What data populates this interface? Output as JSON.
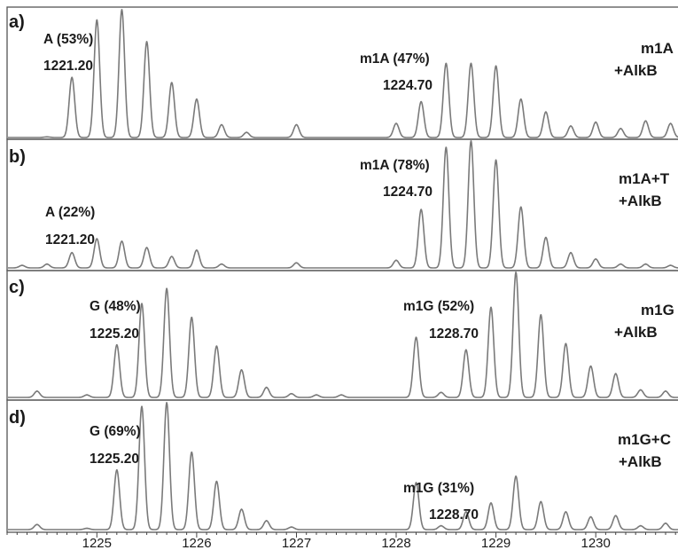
{
  "chart_data": {
    "type": "line",
    "x_axis": {
      "min": 1224.1,
      "max": 1230.94,
      "ticks": [
        1225,
        1226,
        1227,
        1228,
        1229,
        1230
      ],
      "tick_labels": [
        "1225",
        "1226",
        "1227",
        "1228",
        "1229",
        "1230"
      ]
    },
    "panels": [
      {
        "label": "a)",
        "condition": [
          "m1A",
          "+AlkB"
        ],
        "annotations": [
          {
            "name": "A (53%)",
            "value": "1221.20"
          },
          {
            "name": "m1A (47%)",
            "value": "1224.70"
          }
        ],
        "peaks": [
          {
            "x": 1224.5,
            "h": 0.005
          },
          {
            "x": 1224.75,
            "h": 0.47
          },
          {
            "x": 1225.0,
            "h": 0.92
          },
          {
            "x": 1225.25,
            "h": 1.0
          },
          {
            "x": 1225.5,
            "h": 0.75
          },
          {
            "x": 1225.75,
            "h": 0.43
          },
          {
            "x": 1226.0,
            "h": 0.3
          },
          {
            "x": 1226.25,
            "h": 0.1
          },
          {
            "x": 1226.5,
            "h": 0.04
          },
          {
            "x": 1227.0,
            "h": 0.1
          },
          {
            "x": 1228.0,
            "h": 0.11
          },
          {
            "x": 1228.25,
            "h": 0.28
          },
          {
            "x": 1228.5,
            "h": 0.58
          },
          {
            "x": 1228.75,
            "h": 0.58
          },
          {
            "x": 1229.0,
            "h": 0.56
          },
          {
            "x": 1229.25,
            "h": 0.3
          },
          {
            "x": 1229.5,
            "h": 0.2
          },
          {
            "x": 1229.75,
            "h": 0.09
          },
          {
            "x": 1230.0,
            "h": 0.12
          },
          {
            "x": 1230.25,
            "h": 0.07
          },
          {
            "x": 1230.5,
            "h": 0.13
          },
          {
            "x": 1230.75,
            "h": 0.11
          }
        ]
      },
      {
        "label": "b)",
        "condition": [
          "m1A+T",
          "+AlkB"
        ],
        "annotations": [
          {
            "name": "A (22%)",
            "value": "1221.20"
          },
          {
            "name": "m1A (78%)",
            "value": "1224.70"
          }
        ],
        "peaks": [
          {
            "x": 1224.25,
            "h": 0.02
          },
          {
            "x": 1224.5,
            "h": 0.03
          },
          {
            "x": 1224.75,
            "h": 0.12
          },
          {
            "x": 1225.0,
            "h": 0.23
          },
          {
            "x": 1225.25,
            "h": 0.21
          },
          {
            "x": 1225.5,
            "h": 0.16
          },
          {
            "x": 1225.75,
            "h": 0.09
          },
          {
            "x": 1226.0,
            "h": 0.14
          },
          {
            "x": 1226.25,
            "h": 0.03
          },
          {
            "x": 1227.0,
            "h": 0.04
          },
          {
            "x": 1228.0,
            "h": 0.06
          },
          {
            "x": 1228.25,
            "h": 0.46
          },
          {
            "x": 1228.5,
            "h": 0.95
          },
          {
            "x": 1228.75,
            "h": 1.0
          },
          {
            "x": 1229.0,
            "h": 0.85
          },
          {
            "x": 1229.25,
            "h": 0.48
          },
          {
            "x": 1229.5,
            "h": 0.24
          },
          {
            "x": 1229.75,
            "h": 0.12
          },
          {
            "x": 1230.0,
            "h": 0.07
          },
          {
            "x": 1230.25,
            "h": 0.03
          },
          {
            "x": 1230.5,
            "h": 0.03
          },
          {
            "x": 1230.75,
            "h": 0.02
          }
        ]
      },
      {
        "label": "c)",
        "condition": [
          "m1G",
          "+AlkB"
        ],
        "annotations": [
          {
            "name": "G (48%)",
            "value": "1225.20"
          },
          {
            "name": "m1G (52%)",
            "value": "1228.70"
          }
        ],
        "peaks": [
          {
            "x": 1224.4,
            "h": 0.05
          },
          {
            "x": 1224.9,
            "h": 0.02
          },
          {
            "x": 1225.2,
            "h": 0.42
          },
          {
            "x": 1225.45,
            "h": 0.75
          },
          {
            "x": 1225.7,
            "h": 0.87
          },
          {
            "x": 1225.95,
            "h": 0.64
          },
          {
            "x": 1226.2,
            "h": 0.41
          },
          {
            "x": 1226.45,
            "h": 0.22
          },
          {
            "x": 1226.7,
            "h": 0.08
          },
          {
            "x": 1226.95,
            "h": 0.03
          },
          {
            "x": 1227.2,
            "h": 0.02
          },
          {
            "x": 1227.45,
            "h": 0.02
          },
          {
            "x": 1228.2,
            "h": 0.48
          },
          {
            "x": 1228.45,
            "h": 0.04
          },
          {
            "x": 1228.7,
            "h": 0.38
          },
          {
            "x": 1228.95,
            "h": 0.72
          },
          {
            "x": 1229.2,
            "h": 1.0
          },
          {
            "x": 1229.45,
            "h": 0.66
          },
          {
            "x": 1229.7,
            "h": 0.43
          },
          {
            "x": 1229.95,
            "h": 0.25
          },
          {
            "x": 1230.2,
            "h": 0.19
          },
          {
            "x": 1230.45,
            "h": 0.06
          },
          {
            "x": 1230.7,
            "h": 0.05
          }
        ]
      },
      {
        "label": "d)",
        "condition": [
          "m1G+C",
          "+AlkB"
        ],
        "annotations": [
          {
            "name": "G (69%)",
            "value": "1225.20"
          },
          {
            "name": "m1G (31%)",
            "value": "1228.70"
          }
        ],
        "peaks": [
          {
            "x": 1224.4,
            "h": 0.04
          },
          {
            "x": 1224.9,
            "h": 0.01
          },
          {
            "x": 1225.2,
            "h": 0.47
          },
          {
            "x": 1225.45,
            "h": 0.97
          },
          {
            "x": 1225.7,
            "h": 1.0
          },
          {
            "x": 1225.95,
            "h": 0.61
          },
          {
            "x": 1226.2,
            "h": 0.38
          },
          {
            "x": 1226.45,
            "h": 0.16
          },
          {
            "x": 1226.7,
            "h": 0.07
          },
          {
            "x": 1226.95,
            "h": 0.02
          },
          {
            "x": 1228.2,
            "h": 0.37
          },
          {
            "x": 1228.45,
            "h": 0.03
          },
          {
            "x": 1228.7,
            "h": 0.14
          },
          {
            "x": 1228.95,
            "h": 0.21
          },
          {
            "x": 1229.2,
            "h": 0.42
          },
          {
            "x": 1229.45,
            "h": 0.22
          },
          {
            "x": 1229.7,
            "h": 0.14
          },
          {
            "x": 1229.95,
            "h": 0.1
          },
          {
            "x": 1230.2,
            "h": 0.11
          },
          {
            "x": 1230.45,
            "h": 0.03
          },
          {
            "x": 1230.7,
            "h": 0.05
          }
        ]
      }
    ]
  },
  "colors": {
    "trace": "#7a7a7a",
    "frame": "#555555",
    "text": "#1a1a1a",
    "background": "#ffffff"
  }
}
